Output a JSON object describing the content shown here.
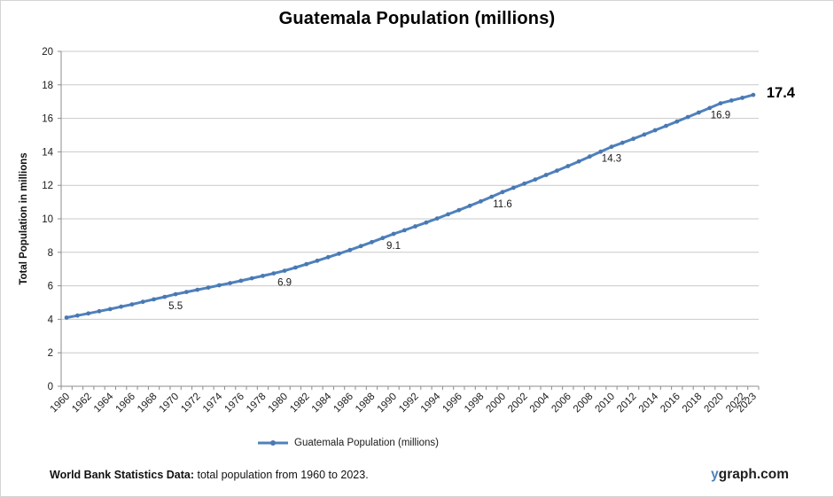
{
  "chart_data": {
    "type": "line",
    "title": "Guatemala Population (millions)",
    "ylabel": "Total Population in millions",
    "xlabel": "",
    "legend": [
      "Guatemala Population (millions)"
    ],
    "legend_position": "bottom",
    "grid": true,
    "ylim": [
      0,
      20
    ],
    "ytick_step": 2,
    "x": [
      1960,
      1961,
      1962,
      1963,
      1964,
      1965,
      1966,
      1967,
      1968,
      1969,
      1970,
      1971,
      1972,
      1973,
      1974,
      1975,
      1976,
      1977,
      1978,
      1979,
      1980,
      1981,
      1982,
      1983,
      1984,
      1985,
      1986,
      1987,
      1988,
      1989,
      1990,
      1991,
      1992,
      1993,
      1994,
      1995,
      1996,
      1997,
      1998,
      1999,
      2000,
      2001,
      2002,
      2003,
      2004,
      2005,
      2006,
      2007,
      2008,
      2009,
      2010,
      2011,
      2012,
      2013,
      2014,
      2015,
      2016,
      2017,
      2018,
      2019,
      2020,
      2021,
      2022,
      2023
    ],
    "x_tick_labels": [
      "1960",
      "1962",
      "1964",
      "1966",
      "1968",
      "1970",
      "1972",
      "1974",
      "1976",
      "1978",
      "1980",
      "1982",
      "1984",
      "1986",
      "1988",
      "1990",
      "1992",
      "1994",
      "1996",
      "1998",
      "2000",
      "2002",
      "2004",
      "2006",
      "2008",
      "2010",
      "2012",
      "2014",
      "2016",
      "2018",
      "2020",
      "2022",
      "2023"
    ],
    "series": [
      {
        "name": "Guatemala Population (millions)",
        "values": [
          4.1,
          4.22,
          4.35,
          4.48,
          4.61,
          4.75,
          4.89,
          5.04,
          5.19,
          5.34,
          5.5,
          5.63,
          5.76,
          5.89,
          6.03,
          6.16,
          6.3,
          6.45,
          6.59,
          6.74,
          6.9,
          7.09,
          7.29,
          7.5,
          7.71,
          7.92,
          8.14,
          8.37,
          8.61,
          8.85,
          9.1,
          9.32,
          9.55,
          9.78,
          10.02,
          10.27,
          10.52,
          10.78,
          11.04,
          11.32,
          11.6,
          11.85,
          12.1,
          12.35,
          12.62,
          12.88,
          13.15,
          13.43,
          13.72,
          14.01,
          14.3,
          14.54,
          14.78,
          15.03,
          15.29,
          15.55,
          15.81,
          16.08,
          16.35,
          16.62,
          16.9,
          17.07,
          17.23,
          17.4
        ]
      }
    ],
    "point_labels": [
      {
        "x": 1970,
        "label": "5.5"
      },
      {
        "x": 1980,
        "label": "6.9"
      },
      {
        "x": 1990,
        "label": "9.1"
      },
      {
        "x": 2000,
        "label": "11.6"
      },
      {
        "x": 2010,
        "label": "14.3"
      },
      {
        "x": 2020,
        "label": "16.9"
      },
      {
        "x": 2023,
        "label": "17.4",
        "emphasis": true
      }
    ],
    "colors": {
      "line": "#4f81bd",
      "marker": "#4a78b0",
      "grid": "#c9c9c9",
      "axis": "#8c8c8c",
      "text": "#1a1a1a"
    }
  },
  "footer": {
    "source_bold": "World Bank Statistics Data:",
    "source_rest": " total population from 1960 to 2023.",
    "logo_accent_text": "y",
    "logo_rest_text": "graph.com"
  }
}
